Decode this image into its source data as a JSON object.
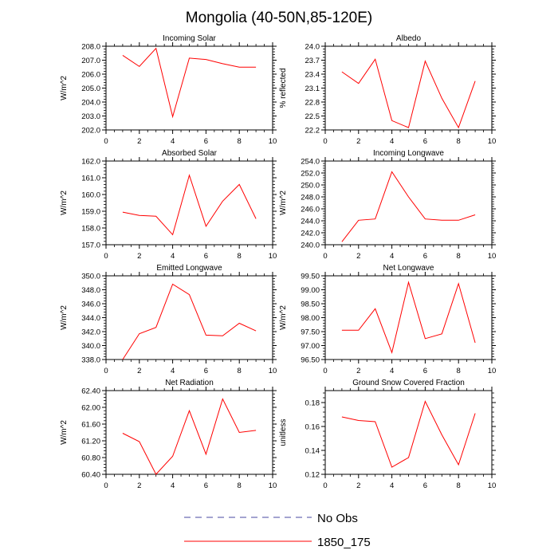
{
  "title": "Mongolia (40-50N,85-120E)",
  "legend": [
    {
      "label": "No Obs",
      "color": "#4a4aa0",
      "style": "dashed"
    },
    {
      "label": "1850_175",
      "color": "#ff0000",
      "style": "solid"
    }
  ],
  "chart_data": [
    {
      "type": "line",
      "title": "Incoming Solar",
      "ylabel": "W/m^2",
      "xlim": [
        0,
        10
      ],
      "xticks": [
        0,
        2,
        4,
        6,
        8,
        10
      ],
      "ylim": [
        202.0,
        208.0
      ],
      "yticks": [
        "202.0",
        "203.0",
        "204.0",
        "205.0",
        "206.0",
        "207.0",
        "208.0"
      ],
      "x": [
        1,
        2,
        3,
        4,
        5,
        6,
        7,
        8,
        9
      ],
      "series": [
        {
          "name": "1850_175",
          "color": "#ff0000",
          "values": [
            207.35,
            206.55,
            207.85,
            202.95,
            207.15,
            207.05,
            206.75,
            206.5,
            206.5
          ]
        }
      ]
    },
    {
      "type": "line",
      "title": "Albedo",
      "ylabel": "% reflected",
      "xlim": [
        0,
        10
      ],
      "xticks": [
        0,
        2,
        4,
        6,
        8,
        10
      ],
      "ylim": [
        22.2,
        24.0
      ],
      "yticks": [
        "22.2",
        "22.5",
        "22.8",
        "23.1",
        "23.4",
        "23.7",
        "24.0"
      ],
      "x": [
        1,
        2,
        3,
        4,
        5,
        6,
        7,
        8,
        9
      ],
      "series": [
        {
          "name": "1850_175",
          "color": "#ff0000",
          "values": [
            23.45,
            23.2,
            23.72,
            22.4,
            22.25,
            23.68,
            22.88,
            22.25,
            23.25
          ]
        }
      ]
    },
    {
      "type": "line",
      "title": "Absorbed Solar",
      "ylabel": "W/m^2",
      "xlim": [
        0,
        10
      ],
      "xticks": [
        0,
        2,
        4,
        6,
        8,
        10
      ],
      "ylim": [
        157.0,
        162.0
      ],
      "yticks": [
        "157.0",
        "158.0",
        "159.0",
        "160.0",
        "161.0",
        "162.0"
      ],
      "x": [
        1,
        2,
        3,
        4,
        5,
        6,
        7,
        8,
        9
      ],
      "series": [
        {
          "name": "1850_175",
          "color": "#ff0000",
          "values": [
            158.95,
            158.75,
            158.7,
            157.6,
            161.15,
            158.1,
            159.6,
            160.6,
            158.55
          ]
        }
      ]
    },
    {
      "type": "line",
      "title": "Incoming Longwave",
      "ylabel": "W/m^2",
      "xlim": [
        0,
        10
      ],
      "xticks": [
        0,
        2,
        4,
        6,
        8,
        10
      ],
      "ylim": [
        240.0,
        254.0
      ],
      "yticks": [
        "240.0",
        "242.0",
        "244.0",
        "246.0",
        "248.0",
        "250.0",
        "252.0",
        "254.0"
      ],
      "x": [
        1,
        2,
        3,
        4,
        5,
        6,
        7,
        8,
        9
      ],
      "series": [
        {
          "name": "1850_175",
          "color": "#ff0000",
          "values": [
            240.5,
            244.1,
            244.3,
            252.2,
            248.0,
            244.3,
            244.1,
            244.1,
            245.0
          ]
        }
      ]
    },
    {
      "type": "line",
      "title": "Emitted Longwave",
      "ylabel": "W/m^2",
      "xlim": [
        0,
        10
      ],
      "xticks": [
        0,
        2,
        4,
        6,
        8,
        10
      ],
      "ylim": [
        338.0,
        350.0
      ],
      "yticks": [
        "338.0",
        "340.0",
        "342.0",
        "344.0",
        "346.0",
        "348.0",
        "350.0"
      ],
      "x": [
        1,
        2,
        3,
        4,
        5,
        6,
        7,
        8,
        9
      ],
      "series": [
        {
          "name": "1850_175",
          "color": "#ff0000",
          "values": [
            338.0,
            341.7,
            342.6,
            348.8,
            347.3,
            341.5,
            341.4,
            343.2,
            342.1
          ]
        }
      ]
    },
    {
      "type": "line",
      "title": "Net Longwave",
      "ylabel": "W/m^2",
      "xlim": [
        0,
        10
      ],
      "xticks": [
        0,
        2,
        4,
        6,
        8,
        10
      ],
      "ylim": [
        96.5,
        99.5
      ],
      "yticks": [
        "96.50",
        "97.00",
        "97.50",
        "98.00",
        "98.50",
        "99.00",
        "99.50"
      ],
      "x": [
        1,
        2,
        3,
        4,
        5,
        6,
        7,
        8,
        9
      ],
      "series": [
        {
          "name": "1850_175",
          "color": "#ff0000",
          "values": [
            97.55,
            97.55,
            98.32,
            96.75,
            99.27,
            97.25,
            97.42,
            99.22,
            97.1
          ]
        }
      ]
    },
    {
      "type": "line",
      "title": "Net Radiation",
      "ylabel": "W/m^2",
      "xlim": [
        0,
        10
      ],
      "xticks": [
        0,
        2,
        4,
        6,
        8,
        10
      ],
      "ylim": [
        60.4,
        62.4
      ],
      "yticks": [
        "60.40",
        "60.80",
        "61.20",
        "61.60",
        "62.00",
        "62.40"
      ],
      "x": [
        1,
        2,
        3,
        4,
        5,
        6,
        7,
        8,
        9
      ],
      "series": [
        {
          "name": "1850_175",
          "color": "#ff0000",
          "values": [
            61.38,
            61.18,
            60.4,
            60.83,
            61.92,
            60.88,
            62.2,
            61.4,
            61.45
          ]
        }
      ]
    },
    {
      "type": "line",
      "title": "Ground Snow Covered Fraction",
      "ylabel": "unitless",
      "xlim": [
        0,
        10
      ],
      "xticks": [
        0,
        2,
        4,
        6,
        8,
        10
      ],
      "ylim": [
        0.12,
        0.19
      ],
      "yticks": [
        "0.12",
        "0.14",
        "0.16",
        "0.18"
      ],
      "x": [
        1,
        2,
        3,
        4,
        5,
        6,
        7,
        8,
        9
      ],
      "series": [
        {
          "name": "1850_175",
          "color": "#ff0000",
          "values": [
            0.168,
            0.165,
            0.164,
            0.126,
            0.134,
            0.181,
            0.153,
            0.128,
            0.171
          ]
        }
      ]
    }
  ]
}
